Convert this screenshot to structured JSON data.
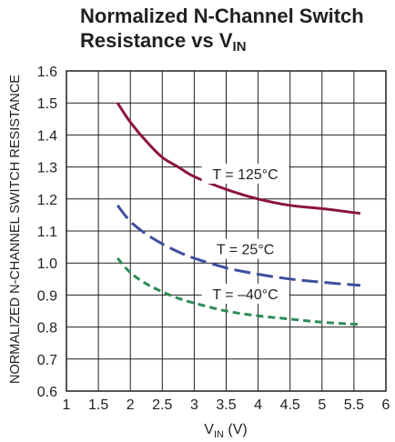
{
  "chart_data": {
    "type": "line",
    "title_line1": "Normalized N-Channel Switch",
    "title_line2_main": "Resistance vs V",
    "title_line2_sub": "IN",
    "xlabel_main": "V",
    "xlabel_sub": "IN",
    "xlabel_unit": " (V)",
    "ylabel": "NORMALIZED N-CHANNEL SWITCH RESISTANCE",
    "xlim": [
      1,
      6
    ],
    "ylim": [
      0.6,
      1.6
    ],
    "x_ticks": [
      "1",
      "1.5",
      "2",
      "2.5",
      "3",
      "3.5",
      "4",
      "4.5",
      "5",
      "5.5",
      "6"
    ],
    "y_ticks": [
      "0.6",
      "0.7",
      "0.8",
      "0.9",
      "1.0",
      "1.1",
      "1.2",
      "1.3",
      "1.4",
      "1.5",
      "1.6"
    ],
    "grid": true,
    "series": [
      {
        "name": "T = 125°C",
        "color": "#8b1538",
        "dash": "solid",
        "x": [
          1.8,
          2.0,
          2.25,
          2.5,
          2.75,
          3.0,
          3.5,
          4.0,
          4.5,
          5.0,
          5.6
        ],
        "y": [
          1.5,
          1.44,
          1.38,
          1.33,
          1.3,
          1.27,
          1.23,
          1.2,
          1.18,
          1.17,
          1.155
        ]
      },
      {
        "name": "T = 25°C",
        "color": "#3e4f9f",
        "dash": "long",
        "x": [
          1.8,
          2.0,
          2.25,
          2.5,
          2.75,
          3.0,
          3.5,
          4.0,
          4.5,
          5.0,
          5.6
        ],
        "y": [
          1.18,
          1.13,
          1.09,
          1.06,
          1.035,
          1.015,
          0.985,
          0.965,
          0.95,
          0.94,
          0.93
        ]
      },
      {
        "name": "T = –40°C",
        "color": "#2e8b57",
        "dash": "short",
        "x": [
          1.8,
          2.0,
          2.25,
          2.5,
          2.75,
          3.0,
          3.5,
          4.0,
          4.5,
          5.0,
          5.6
        ],
        "y": [
          1.015,
          0.97,
          0.935,
          0.91,
          0.89,
          0.875,
          0.85,
          0.835,
          0.825,
          0.815,
          0.808
        ]
      }
    ],
    "annotations": [
      {
        "text": "T = 125°C",
        "x": 3.8,
        "y": 1.265
      },
      {
        "text": "T = 25°C",
        "x": 3.8,
        "y": 1.03
      },
      {
        "text": "T = –40°C",
        "x": 3.8,
        "y": 0.89
      }
    ]
  }
}
